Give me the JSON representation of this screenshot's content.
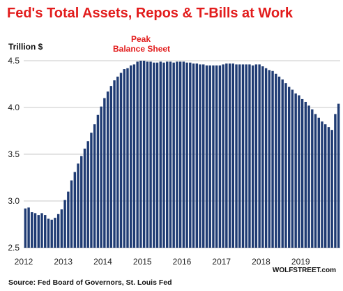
{
  "title": "Fed's Total Assets, Repos & T-Bills at Work",
  "unit_label": "Trillion $",
  "annotation": {
    "line1": "Peak",
    "line2": "Balance Sheet"
  },
  "brand": "WOLFSTREET.com",
  "source": "Source: Fed Board of Governors, St. Louis Fed",
  "colors": {
    "bar": "#1f3b73",
    "title": "#e21c1c",
    "grid": "#c8c8c8"
  },
  "chart_data": {
    "type": "bar",
    "ylim": [
      2.5,
      4.5
    ],
    "yticks": [
      "2.5",
      "3.0",
      "3.5",
      "4.0",
      "4.5"
    ],
    "xticks": [
      "2012",
      "2013",
      "2014",
      "2015",
      "2016",
      "2017",
      "2018",
      "2019"
    ],
    "grid": "horizontal",
    "xlabel": "",
    "ylabel": "Trillion $",
    "start": "2012-01",
    "frequency": "monthly",
    "values": [
      2.92,
      2.93,
      2.88,
      2.87,
      2.85,
      2.87,
      2.85,
      2.81,
      2.8,
      2.82,
      2.86,
      2.91,
      3.01,
      3.1,
      3.22,
      3.31,
      3.4,
      3.48,
      3.56,
      3.64,
      3.73,
      3.82,
      3.92,
      4.01,
      4.1,
      4.17,
      4.23,
      4.29,
      4.33,
      4.37,
      4.41,
      4.42,
      4.45,
      4.46,
      4.49,
      4.5,
      4.5,
      4.49,
      4.49,
      4.48,
      4.48,
      4.49,
      4.48,
      4.49,
      4.49,
      4.48,
      4.49,
      4.49,
      4.49,
      4.48,
      4.48,
      4.47,
      4.47,
      4.46,
      4.46,
      4.45,
      4.45,
      4.45,
      4.45,
      4.45,
      4.46,
      4.47,
      4.47,
      4.47,
      4.46,
      4.46,
      4.46,
      4.46,
      4.46,
      4.45,
      4.46,
      4.46,
      4.44,
      4.42,
      4.4,
      4.39,
      4.36,
      4.33,
      4.3,
      4.26,
      4.22,
      4.19,
      4.15,
      4.13,
      4.09,
      4.06,
      4.02,
      3.98,
      3.93,
      3.89,
      3.85,
      3.82,
      3.79,
      3.76,
      3.93,
      4.04
    ]
  }
}
